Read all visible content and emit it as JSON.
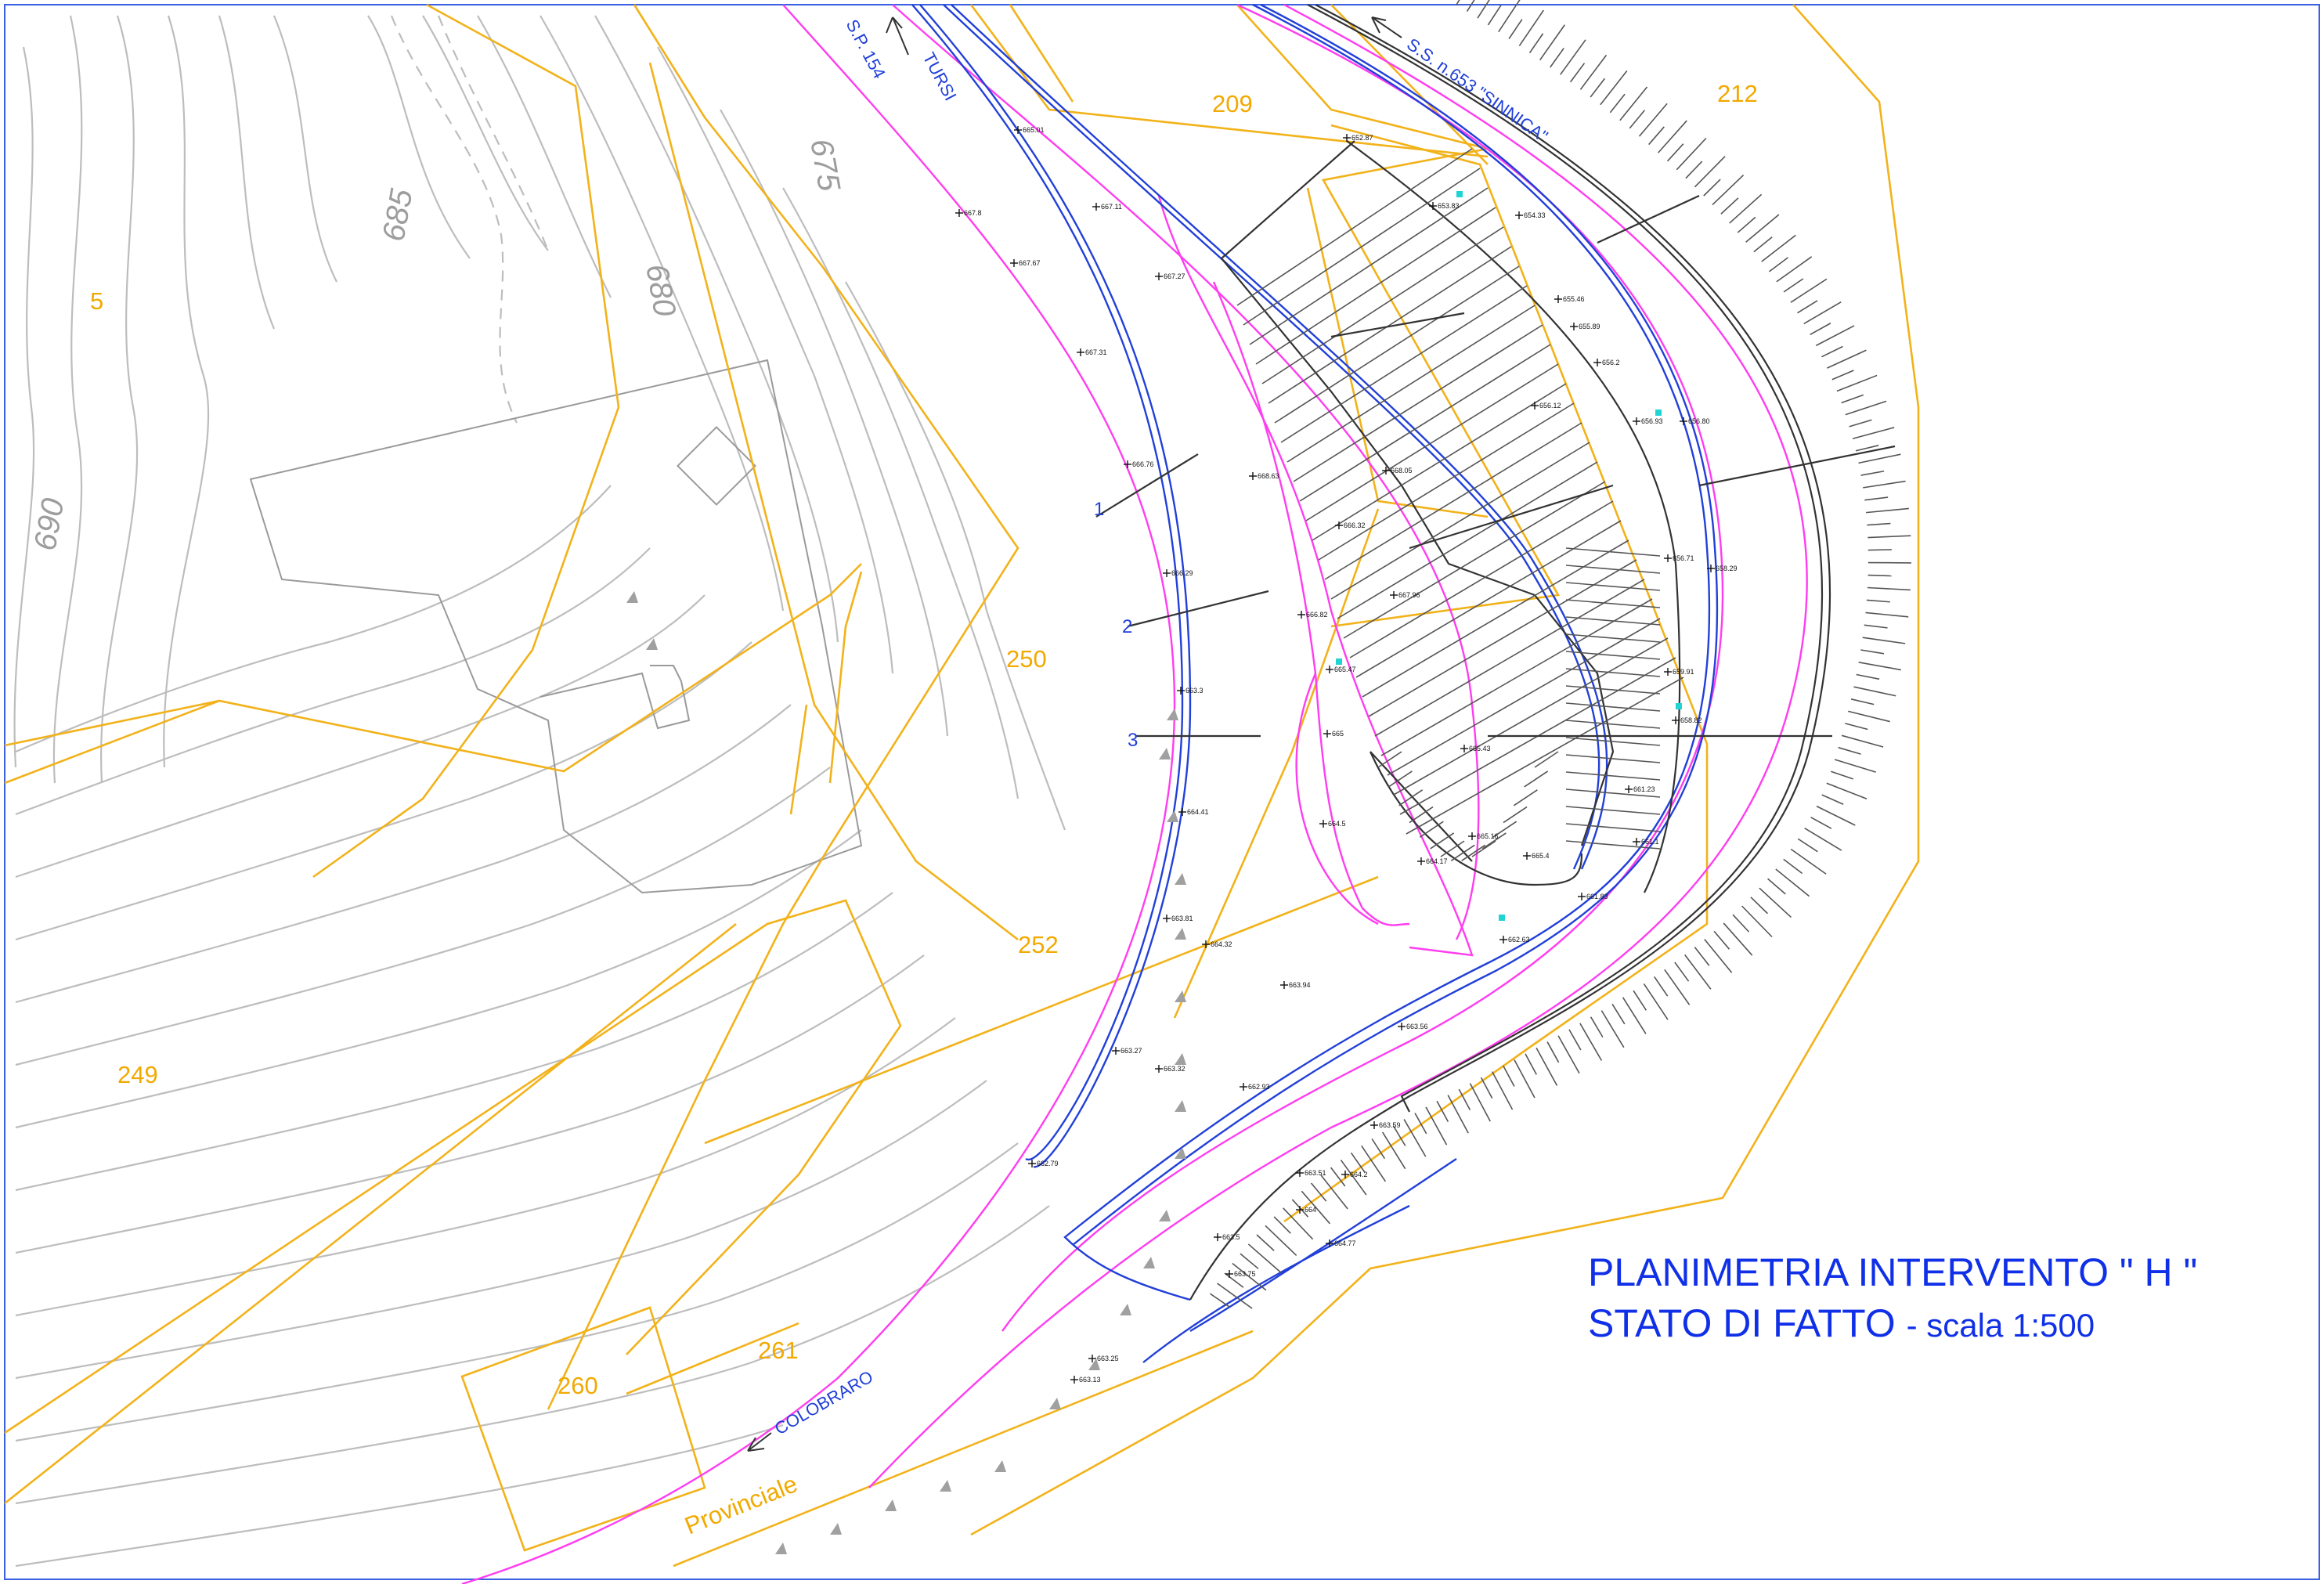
{
  "title": {
    "line1": "PLANIMETRIA INTERVENTO \" H \"",
    "line2_main": "STATO DI FATTO",
    "line2_sub": "- scala 1:500"
  },
  "parcels": [
    "5",
    "209",
    "212",
    "250",
    "252",
    "249",
    "260",
    "261"
  ],
  "contour_labels": [
    "690",
    "685",
    "680",
    "675"
  ],
  "roads": {
    "sp154": "S.P. 154",
    "tursi": "TURSI",
    "ss653": "S.S. n.653 \"SINNICA\"",
    "colobraro": "COLOBRARO",
    "provinciale": "Provinciale"
  },
  "sections": [
    "1",
    "2",
    "3"
  ],
  "spot_heights": [
    "665.01",
    "667.8",
    "667.67",
    "667.11",
    "667.27",
    "667.31",
    "666.76",
    "666.29",
    "663.3",
    "664.41",
    "663.81",
    "664.32",
    "663.27",
    "663.32",
    "662.79",
    "663.94",
    "662.93",
    "652.87",
    "653.83",
    "654.33",
    "655.46",
    "655.89",
    "656.2",
    "656.12",
    "656.93",
    "656.80",
    "658.29",
    "656.71",
    "659.91",
    "658.82",
    "661.23",
    "661.1",
    "661.83",
    "662.63",
    "663.56",
    "663.59",
    "664.77",
    "663.51",
    "664.2",
    "664",
    "663.5",
    "663.75",
    "663.25",
    "663.13",
    "665",
    "665.47",
    "664.5",
    "665.43",
    "665.16",
    "665.4",
    "666.32",
    "666.82",
    "667.96",
    "668.63",
    "668.05",
    "664.17"
  ],
  "colors": {
    "contour": "#bdbdbd",
    "parcel": "#f2b21a",
    "road_edge": "#ff3df0",
    "road_axis": "#2240d8",
    "slope": "#333333",
    "title": "#1030e8"
  }
}
